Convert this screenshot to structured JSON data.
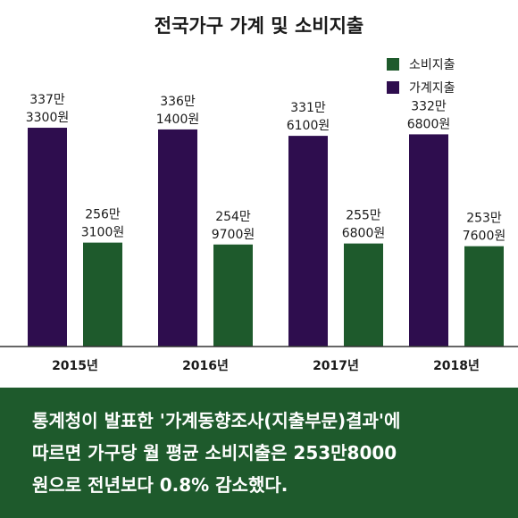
{
  "chart_data": {
    "type": "bar",
    "title": "전국가구 가계 및 소비지출",
    "categories": [
      "2015년",
      "2016년",
      "2017년",
      "2018년"
    ],
    "legend_position": "top-right",
    "unit": "원",
    "series": [
      {
        "name": "가계지출",
        "color": "#2e0d4e",
        "values": [
          3373300,
          3361400,
          3316100,
          3326800
        ],
        "labels": [
          [
            "337만",
            "3300원"
          ],
          [
            "336만",
            "1400원"
          ],
          [
            "331만",
            "6100원"
          ],
          [
            "332만",
            "6800원"
          ]
        ]
      },
      {
        "name": "소비지출",
        "color": "#1e5a2c",
        "values": [
          2563100,
          2549700,
          2556800,
          2537600
        ],
        "labels": [
          [
            "256만",
            "3100원"
          ],
          [
            "254만",
            "9700원"
          ],
          [
            "255만",
            "6800원"
          ],
          [
            "253만",
            "7600원"
          ]
        ]
      }
    ],
    "legend": [
      "소비지출",
      "가계지출"
    ]
  },
  "footer": {
    "lines": [
      "통계청이 발표한 '가계동향조사(지출부문)결과'에",
      "따르면 가구당 월 평균 소비지출은 253만8000",
      "원으로 전년보다 0.8% 감소했다."
    ]
  }
}
